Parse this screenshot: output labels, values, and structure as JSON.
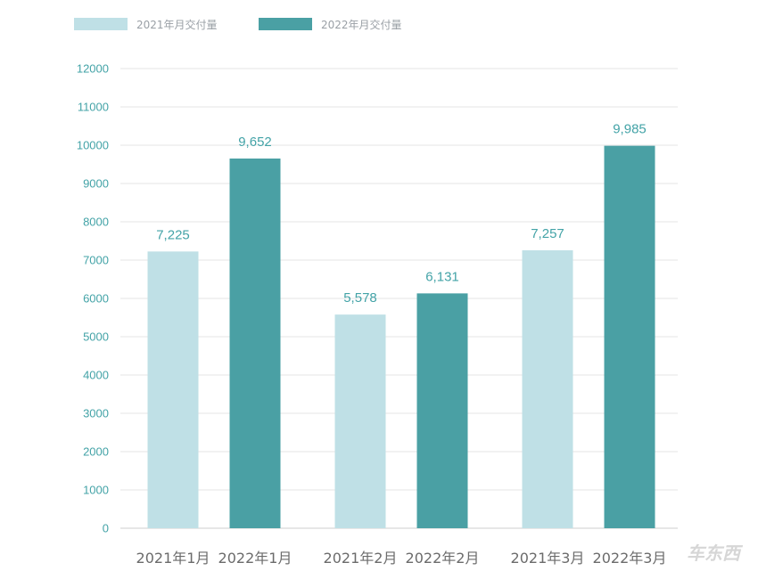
{
  "chart_data": {
    "type": "bar",
    "title": "",
    "xlabel": "",
    "ylabel": "",
    "ylim": [
      0,
      12000
    ],
    "yticks": [
      0,
      1000,
      2000,
      3000,
      4000,
      5000,
      6000,
      7000,
      8000,
      9000,
      10000,
      11000,
      12000
    ],
    "grid": true,
    "legend_position": "top-left",
    "legend": [
      {
        "name": "2021年月交付量",
        "color": "#bfe0e6"
      },
      {
        "name": "2022年月交付量",
        "color": "#4aa0a4"
      }
    ],
    "groups": [
      {
        "bars": [
          {
            "series": "2021年月交付量",
            "label": "2021年1月",
            "value": 7225,
            "value_label": "7,225"
          },
          {
            "series": "2022年月交付量",
            "label": "2022年1月",
            "value": 9652,
            "value_label": "9,652"
          }
        ]
      },
      {
        "bars": [
          {
            "series": "2021年月交付量",
            "label": "2021年2月",
            "value": 5578,
            "value_label": "5,578"
          },
          {
            "series": "2022年月交付量",
            "label": "2022年2月",
            "value": 6131,
            "value_label": "6,131"
          }
        ]
      },
      {
        "bars": [
          {
            "series": "2021年月交付量",
            "label": "2021年3月",
            "value": 7257,
            "value_label": "7,257"
          },
          {
            "series": "2022年月交付量",
            "label": "2022年3月",
            "value": 9985,
            "value_label": "9,985"
          }
        ]
      }
    ]
  },
  "watermark": "车东西"
}
